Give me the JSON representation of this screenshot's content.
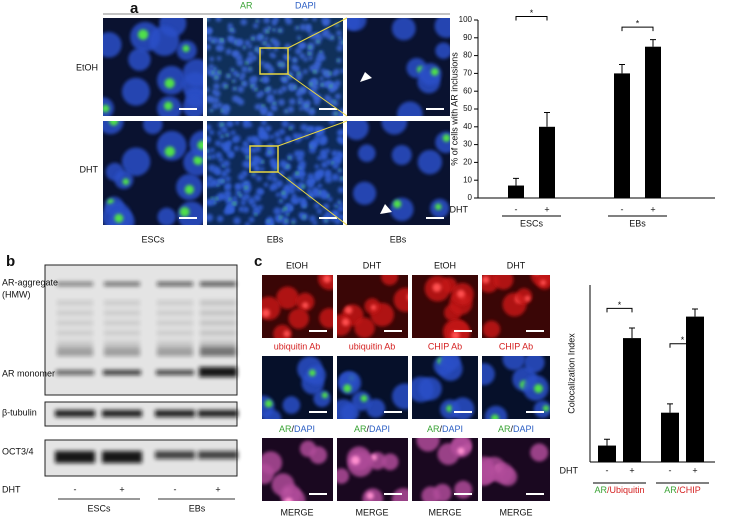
{
  "panel_a": {
    "label": "a",
    "channels": [
      "AR",
      "DAPI"
    ],
    "rows": [
      "EtOH",
      "DHT"
    ],
    "columns": [
      "ESCs",
      "EBs",
      "EBs"
    ]
  },
  "panel_b": {
    "label": "b",
    "bands": [
      "AR-aggregate",
      "(HMW)",
      "AR monomer",
      "β-tubulin",
      "OCT3/4"
    ],
    "treatment_label": "DHT",
    "treatments": [
      "-",
      "+",
      "-",
      "+"
    ],
    "groups": [
      "ESCs",
      "EBs"
    ]
  },
  "panel_c": {
    "label": "c",
    "columns": [
      "EtOH",
      "DHT",
      "EtOH",
      "DHT"
    ],
    "antibodies": [
      "ubiquitin Ab",
      "ubiquitin Ab",
      "CHIP Ab",
      "CHIP Ab"
    ],
    "merge_row": {
      "first": "AR",
      "separator": "/",
      "second": "DAPI"
    },
    "bottom_label": "MERGE"
  },
  "chart_data": [
    {
      "type": "bar",
      "y_label": "% of cells with AR inclusions",
      "x_label": "DHT",
      "categories": [
        "-",
        "+",
        "-",
        "+"
      ],
      "values": [
        7,
        40,
        70,
        85
      ],
      "errors": [
        4,
        8,
        5,
        4
      ],
      "color": "#000000",
      "groups": [
        {
          "name": "ESCs",
          "first": "-",
          "second": "+"
        },
        {
          "name": "EBs",
          "first": "-",
          "second": "+"
        }
      ],
      "significance": [
        "*",
        "*"
      ],
      "ylim": [
        0,
        100
      ],
      "yticks": [
        0,
        10,
        20,
        30,
        40,
        50,
        60,
        70,
        80,
        90,
        100
      ]
    },
    {
      "type": "bar",
      "y_label": "Colocalization Index",
      "x_label": "DHT",
      "categories": [
        "-",
        "+",
        "-",
        "+"
      ],
      "values": [
        0.065,
        0.49,
        0.195,
        0.575
      ],
      "errors": [
        0.025,
        0.04,
        0.035,
        0.03
      ],
      "color": "#000000",
      "groups": [
        {
          "name": "Ubiquitin",
          "prefix": "AR",
          "separator": "/"
        },
        {
          "name": "CHIP",
          "prefix": "AR",
          "separator": "/"
        }
      ],
      "significance": [
        "*",
        "*"
      ],
      "ylim": [
        0,
        0.7
      ]
    }
  ]
}
